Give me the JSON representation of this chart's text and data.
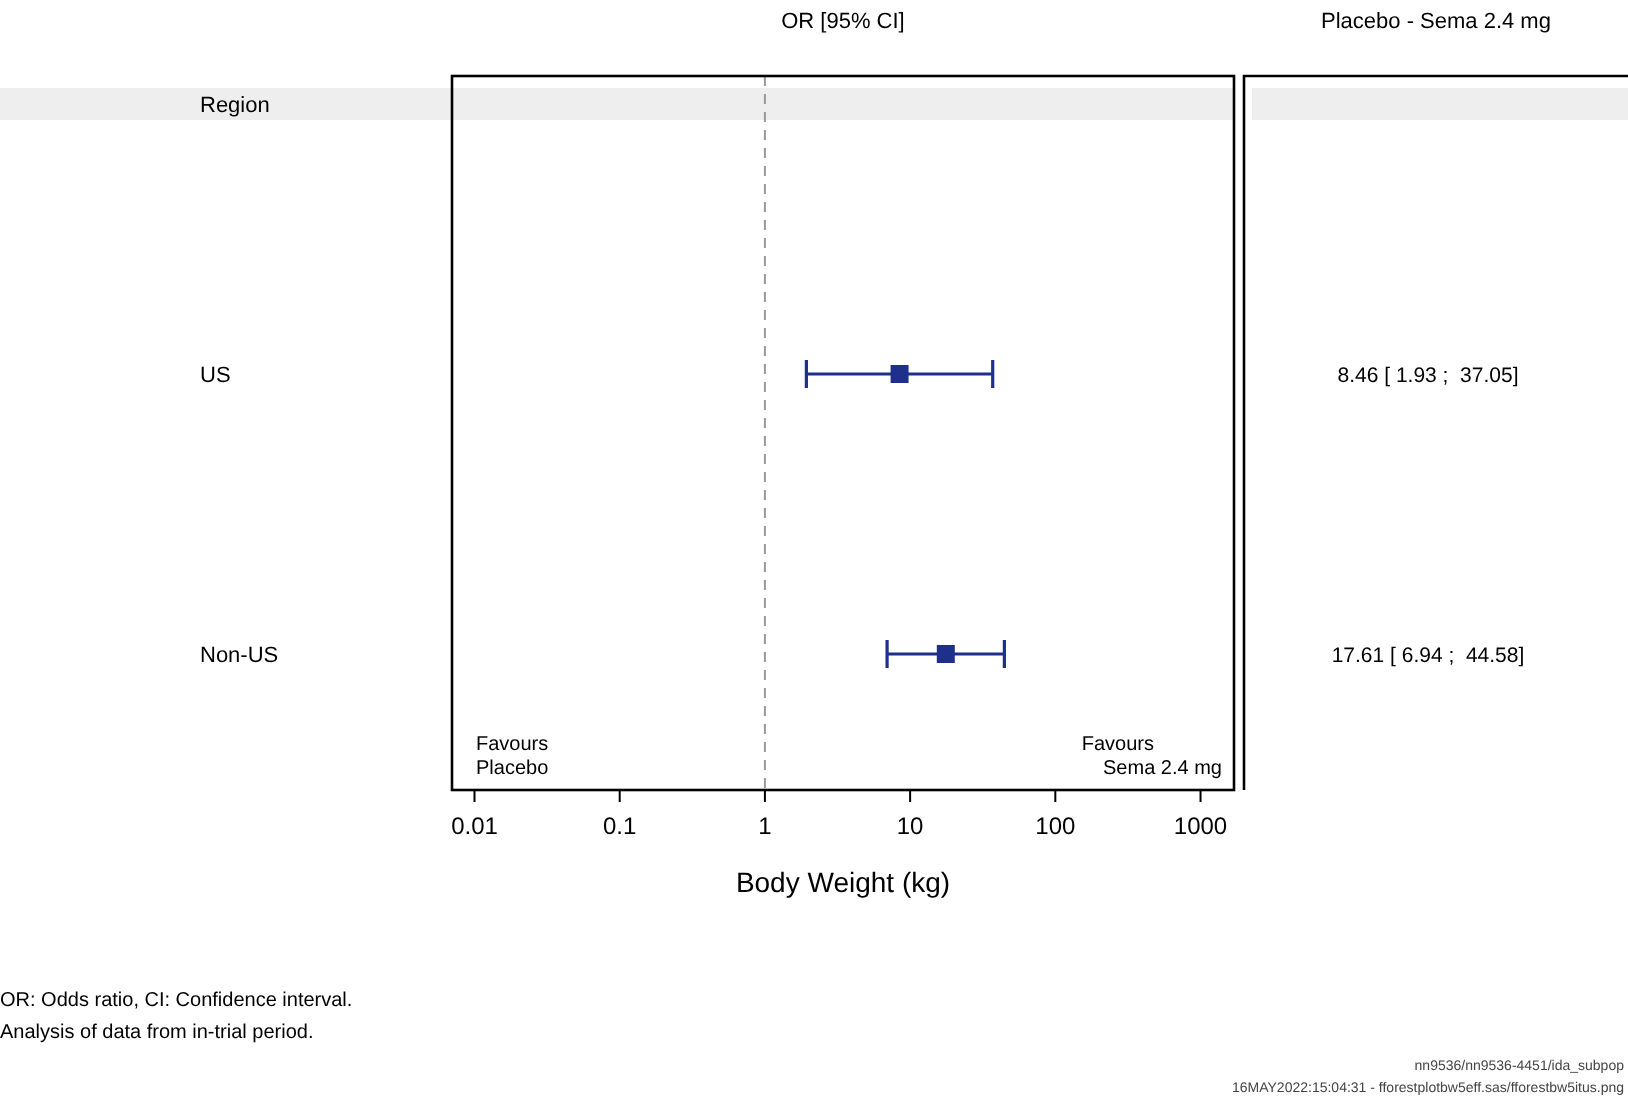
{
  "chart_data": {
    "type": "scatter",
    "orientation": "horizontal",
    "title": "OR [95% CI]",
    "xlabel": "Body Weight (kg)",
    "categories": [
      "US",
      "Non-US"
    ],
    "values": [
      8.46,
      17.61
    ],
    "errors": [
      [
        1.93,
        37.05
      ],
      [
        6.94,
        44.58
      ]
    ],
    "value_labels": [
      "8.46 [ 1.93 ;  37.05]",
      "17.61 [ 6.94 ;  44.58]"
    ],
    "color": "#1f2f8c",
    "marker": "square",
    "log": "x",
    "xlim": [
      0.007,
      1700
    ],
    "xticks": [
      0.01,
      0.1,
      1,
      10,
      100,
      1000
    ],
    "ref_lines": [
      {
        "axis": "x",
        "value": 1,
        "color": "#999999",
        "line_style": "dashed"
      }
    ],
    "annotations": [
      "Region",
      "Placebo - Sema 2.4 mg",
      "Favours Placebo",
      "Favours Sema 2.4 mg",
      "OR: Odds ratio, CI: Confidence interval.",
      "Analysis of data from in-trial period.",
      "nn9536/nn9536-4451/ida_subpop",
      "16MAY2022:15:04:31 - fforestplotbw5eff.sas/fforestbw5itus.png"
    ]
  }
}
